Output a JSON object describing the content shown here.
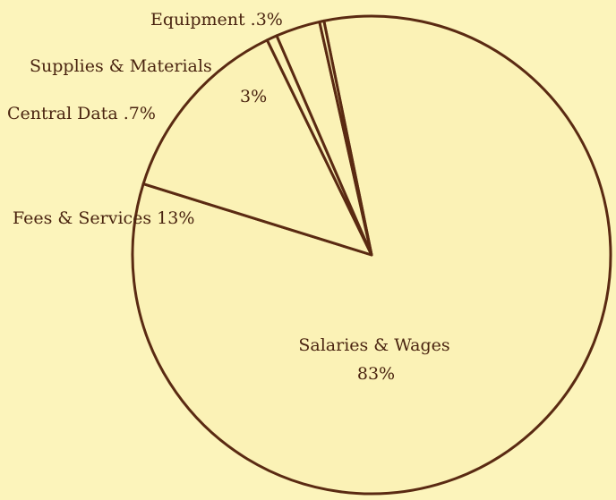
{
  "chart_data": {
    "type": "pie",
    "categories": [
      "Salaries & Wages",
      "Fees & Services",
      "Central Data",
      "Supplies & Materials",
      "Equipment"
    ],
    "values": [
      83,
      13,
      0.7,
      3,
      0.3
    ],
    "value_labels": [
      "83%",
      "13%",
      ".7%",
      "3%",
      ".3%"
    ],
    "color": "#fbf2b6"
  }
}
